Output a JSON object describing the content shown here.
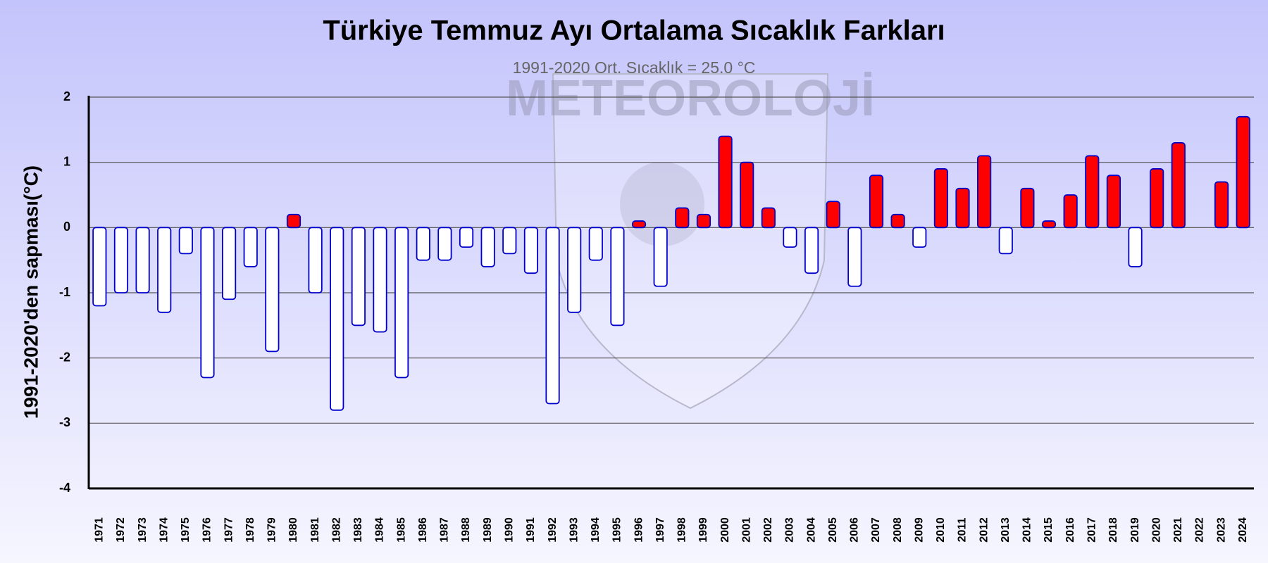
{
  "chart_data": {
    "type": "bar",
    "title": "Türkiye Temmuz Ayı Ortalama Sıcaklık Farkları",
    "subtitle": "1991-2020 Ort. Sıcaklık = 25.0 °C",
    "y_label": "1991-2020'den sapması(°C)",
    "watermark": "METEOROLOJİ",
    "categories": [
      "1971",
      "1972",
      "1973",
      "1974",
      "1975",
      "1976",
      "1977",
      "1978",
      "1979",
      "1980",
      "1981",
      "1982",
      "1983",
      "1984",
      "1985",
      "1986",
      "1987",
      "1988",
      "1989",
      "1990",
      "1991",
      "1992",
      "1993",
      "1994",
      "1995",
      "1996",
      "1997",
      "1998",
      "1999",
      "2000",
      "2001",
      "2002",
      "2003",
      "2004",
      "2005",
      "2006",
      "2007",
      "2008",
      "2009",
      "2010",
      "2011",
      "2012",
      "2013",
      "2014",
      "2015",
      "2016",
      "2017",
      "2018",
      "2019",
      "2020",
      "2021",
      "2022",
      "2023",
      "2024"
    ],
    "values": [
      -1.2,
      -1.0,
      -1.0,
      -1.3,
      -0.4,
      -2.3,
      -1.1,
      -0.6,
      -1.9,
      0.2,
      -1.0,
      -2.8,
      -1.5,
      -1.6,
      -2.3,
      -0.5,
      -0.5,
      -0.3,
      -0.6,
      -0.4,
      -0.7,
      -2.7,
      -1.3,
      -0.5,
      -1.5,
      0.1,
      -0.9,
      0.3,
      0.2,
      1.4,
      1.0,
      0.3,
      -0.3,
      -0.7,
      0.4,
      -0.9,
      0.8,
      0.2,
      -0.3,
      0.9,
      0.6,
      1.1,
      -0.4,
      0.6,
      0.1,
      0.5,
      1.1,
      0.8,
      -0.6,
      0.9,
      1.3,
      0.0,
      0.7,
      1.7
    ],
    "positive_color": "#ff0000",
    "negative_color": "#ffffff",
    "edge_color": "#0000cc",
    "ylim": [
      -4,
      2
    ],
    "yticks": [
      -4,
      -3,
      -2,
      -1,
      0,
      1,
      2
    ],
    "grid": true
  }
}
